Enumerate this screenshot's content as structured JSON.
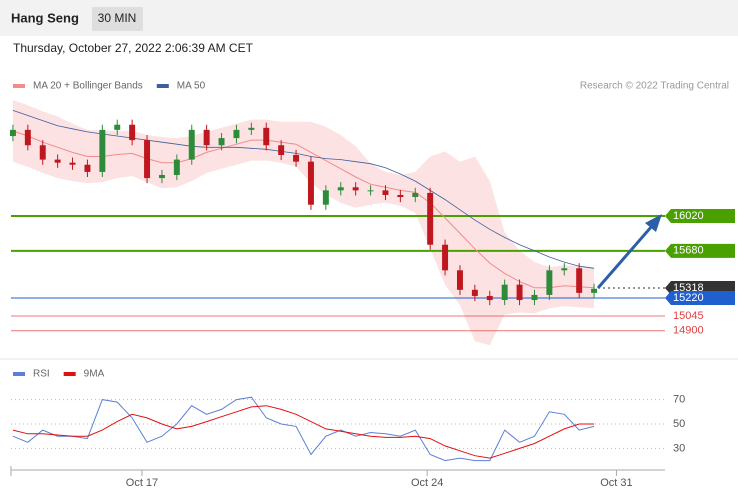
{
  "header": {
    "title": "Hang Seng",
    "interval": "30 MIN",
    "timestamp": "Thursday, October 27, 2022 2:06:39 AM CET"
  },
  "chart_data": [
    {
      "type": "candlestick",
      "source": "Research © 2022 Trading Central",
      "up_color": "#2e8b3a",
      "down_color": "#c0161e",
      "x": [
        0,
        1,
        2,
        3,
        4,
        5,
        6,
        7,
        8,
        9,
        10,
        11,
        12,
        13,
        14,
        15,
        16,
        17,
        18,
        19,
        20,
        21,
        22,
        23,
        24,
        25,
        26,
        27,
        28,
        29,
        30,
        31,
        32,
        33,
        34,
        35,
        36,
        37,
        38,
        39
      ],
      "open": [
        16800,
        16860,
        16710,
        16570,
        16540,
        16520,
        16450,
        16860,
        16910,
        16760,
        16390,
        16420,
        16570,
        16860,
        16710,
        16780,
        16860,
        16880,
        16710,
        16615,
        16550,
        16130,
        16270,
        16300,
        16270,
        16270,
        16225,
        16205,
        16245,
        15740,
        15490,
        15300,
        15240,
        15200,
        15350,
        15200,
        15250,
        15490,
        15510,
        15270
      ],
      "high": [
        16910,
        16910,
        16760,
        16620,
        16590,
        16570,
        16910,
        16960,
        16960,
        16810,
        16470,
        16620,
        16910,
        16910,
        16830,
        16910,
        16930,
        16930,
        16760,
        16665,
        16600,
        16320,
        16350,
        16350,
        16320,
        16320,
        16275,
        16295,
        16295,
        15790,
        15540,
        15350,
        15290,
        15400,
        15400,
        15300,
        15540,
        15560,
        15560,
        15360
      ],
      "low": [
        16750,
        16660,
        16520,
        16490,
        16470,
        16400,
        16400,
        16810,
        16710,
        16340,
        16340,
        16370,
        16520,
        16660,
        16660,
        16730,
        16810,
        16660,
        16565,
        16500,
        16080,
        16080,
        16220,
        16220,
        16220,
        16175,
        16155,
        16155,
        15690,
        15440,
        15250,
        15190,
        15150,
        15150,
        15150,
        15150,
        15200,
        15440,
        15220,
        15220
      ],
      "close": [
        16860,
        16710,
        16570,
        16540,
        16520,
        16450,
        16860,
        16910,
        16760,
        16390,
        16420,
        16570,
        16860,
        16710,
        16780,
        16860,
        16880,
        16710,
        16615,
        16550,
        16130,
        16270,
        16300,
        16270,
        16270,
        16225,
        16205,
        16245,
        15740,
        15490,
        15300,
        15240,
        15200,
        15350,
        15200,
        15250,
        15490,
        15510,
        15270,
        15310
      ],
      "series": [
        {
          "name": "MA 20 + Bollinger Bands",
          "color": "#f28b8b",
          "values": [
            16850,
            16800,
            16740,
            16690,
            16640,
            16600,
            16600,
            16620,
            16630,
            16580,
            16540,
            16540,
            16580,
            16640,
            16680,
            16720,
            16760,
            16760,
            16740,
            16720,
            16640,
            16560,
            16480,
            16400,
            16330,
            16300,
            16270,
            16250,
            16150,
            16000,
            15850,
            15700,
            15560,
            15460,
            15380,
            15320,
            15320,
            15340,
            15330,
            15320
          ],
          "upper": [
            17150,
            17100,
            17040,
            16990,
            16920,
            16860,
            16850,
            16850,
            16850,
            16810,
            16790,
            16780,
            16800,
            16840,
            16880,
            16920,
            16960,
            16960,
            16940,
            16940,
            16940,
            16890,
            16810,
            16700,
            16530,
            16450,
            16420,
            16450,
            16600,
            16650,
            16550,
            16600,
            16360,
            15860,
            15680,
            15570,
            15520,
            15540,
            15530,
            15520
          ],
          "lower": [
            16550,
            16500,
            16440,
            16390,
            16360,
            16340,
            16350,
            16390,
            16410,
            16350,
            16290,
            16300,
            16360,
            16440,
            16480,
            16520,
            16560,
            16560,
            16540,
            16500,
            16340,
            16230,
            16150,
            16100,
            16130,
            16150,
            16120,
            16050,
            15700,
            15350,
            15150,
            14800,
            14760,
            15060,
            15080,
            15070,
            15120,
            15140,
            15130,
            15120
          ]
        },
        {
          "name": "MA 50",
          "color": "#3d5f9e",
          "values": [
            17050,
            17000,
            16950,
            16900,
            16870,
            16840,
            16820,
            16800,
            16780,
            16760,
            16740,
            16720,
            16700,
            16690,
            16690,
            16690,
            16680,
            16670,
            16650,
            16630,
            16600,
            16580,
            16570,
            16550,
            16530,
            16490,
            16430,
            16360,
            16270,
            16180,
            16080,
            15980,
            15890,
            15810,
            15740,
            15680,
            15620,
            15570,
            15530,
            15510
          ]
        }
      ],
      "levels": [
        {
          "value": 16020,
          "color": "#4aa000",
          "style": "solid",
          "label_style": "box"
        },
        {
          "value": 15680,
          "color": "#4aa000",
          "style": "solid",
          "label_style": "box"
        },
        {
          "value": 15318,
          "color": "#333333",
          "style": "dotted",
          "label_style": "box"
        },
        {
          "value": 15220,
          "color": "#1f5fd0",
          "style": "solid",
          "label_style": "box"
        },
        {
          "value": 15045,
          "color": "#e04040",
          "style": "thin",
          "label_style": "text"
        },
        {
          "value": 14900,
          "color": "#e04040",
          "style": "thin",
          "label_style": "text"
        }
      ],
      "xlim": [
        -0.13,
        43.76
      ],
      "ylim": [
        14664,
        17444
      ]
    },
    {
      "type": "line",
      "x": [
        0,
        1,
        2,
        3,
        4,
        5,
        6,
        7,
        8,
        9,
        10,
        11,
        12,
        13,
        14,
        15,
        16,
        17,
        18,
        19,
        20,
        21,
        22,
        23,
        24,
        25,
        26,
        27,
        28,
        29,
        30,
        31,
        32,
        33,
        34,
        35,
        36,
        37,
        38,
        39
      ],
      "series": [
        {
          "name": "RSI",
          "color": "#5b7fd6",
          "values": [
            40,
            35,
            45,
            40,
            40,
            38,
            70,
            68,
            55,
            35,
            40,
            50,
            65,
            58,
            62,
            70,
            72,
            55,
            50,
            48,
            25,
            40,
            45,
            40,
            43,
            42,
            40,
            45,
            25,
            20,
            22,
            20,
            20,
            45,
            35,
            40,
            60,
            58,
            45,
            48
          ]
        },
        {
          "name": "9MA",
          "color": "#e01010",
          "values": [
            45,
            42,
            42,
            41,
            40,
            40,
            45,
            52,
            58,
            55,
            50,
            46,
            48,
            52,
            56,
            60,
            64,
            65,
            62,
            58,
            52,
            46,
            44,
            42,
            40,
            39,
            39,
            40,
            38,
            32,
            28,
            24,
            22,
            26,
            30,
            34,
            40,
            46,
            50,
            50
          ]
        }
      ],
      "xlim": [
        -0.13,
        43.76
      ],
      "ylim": [
        18,
        82
      ],
      "yticks": [
        30,
        50,
        70
      ],
      "xticks": [
        {
          "value": 8.66,
          "label": "Oct 17"
        },
        {
          "value": 27.8,
          "label": "Oct 24"
        },
        {
          "value": 40.5,
          "label": "Oct 31"
        }
      ],
      "grid": true
    }
  ]
}
